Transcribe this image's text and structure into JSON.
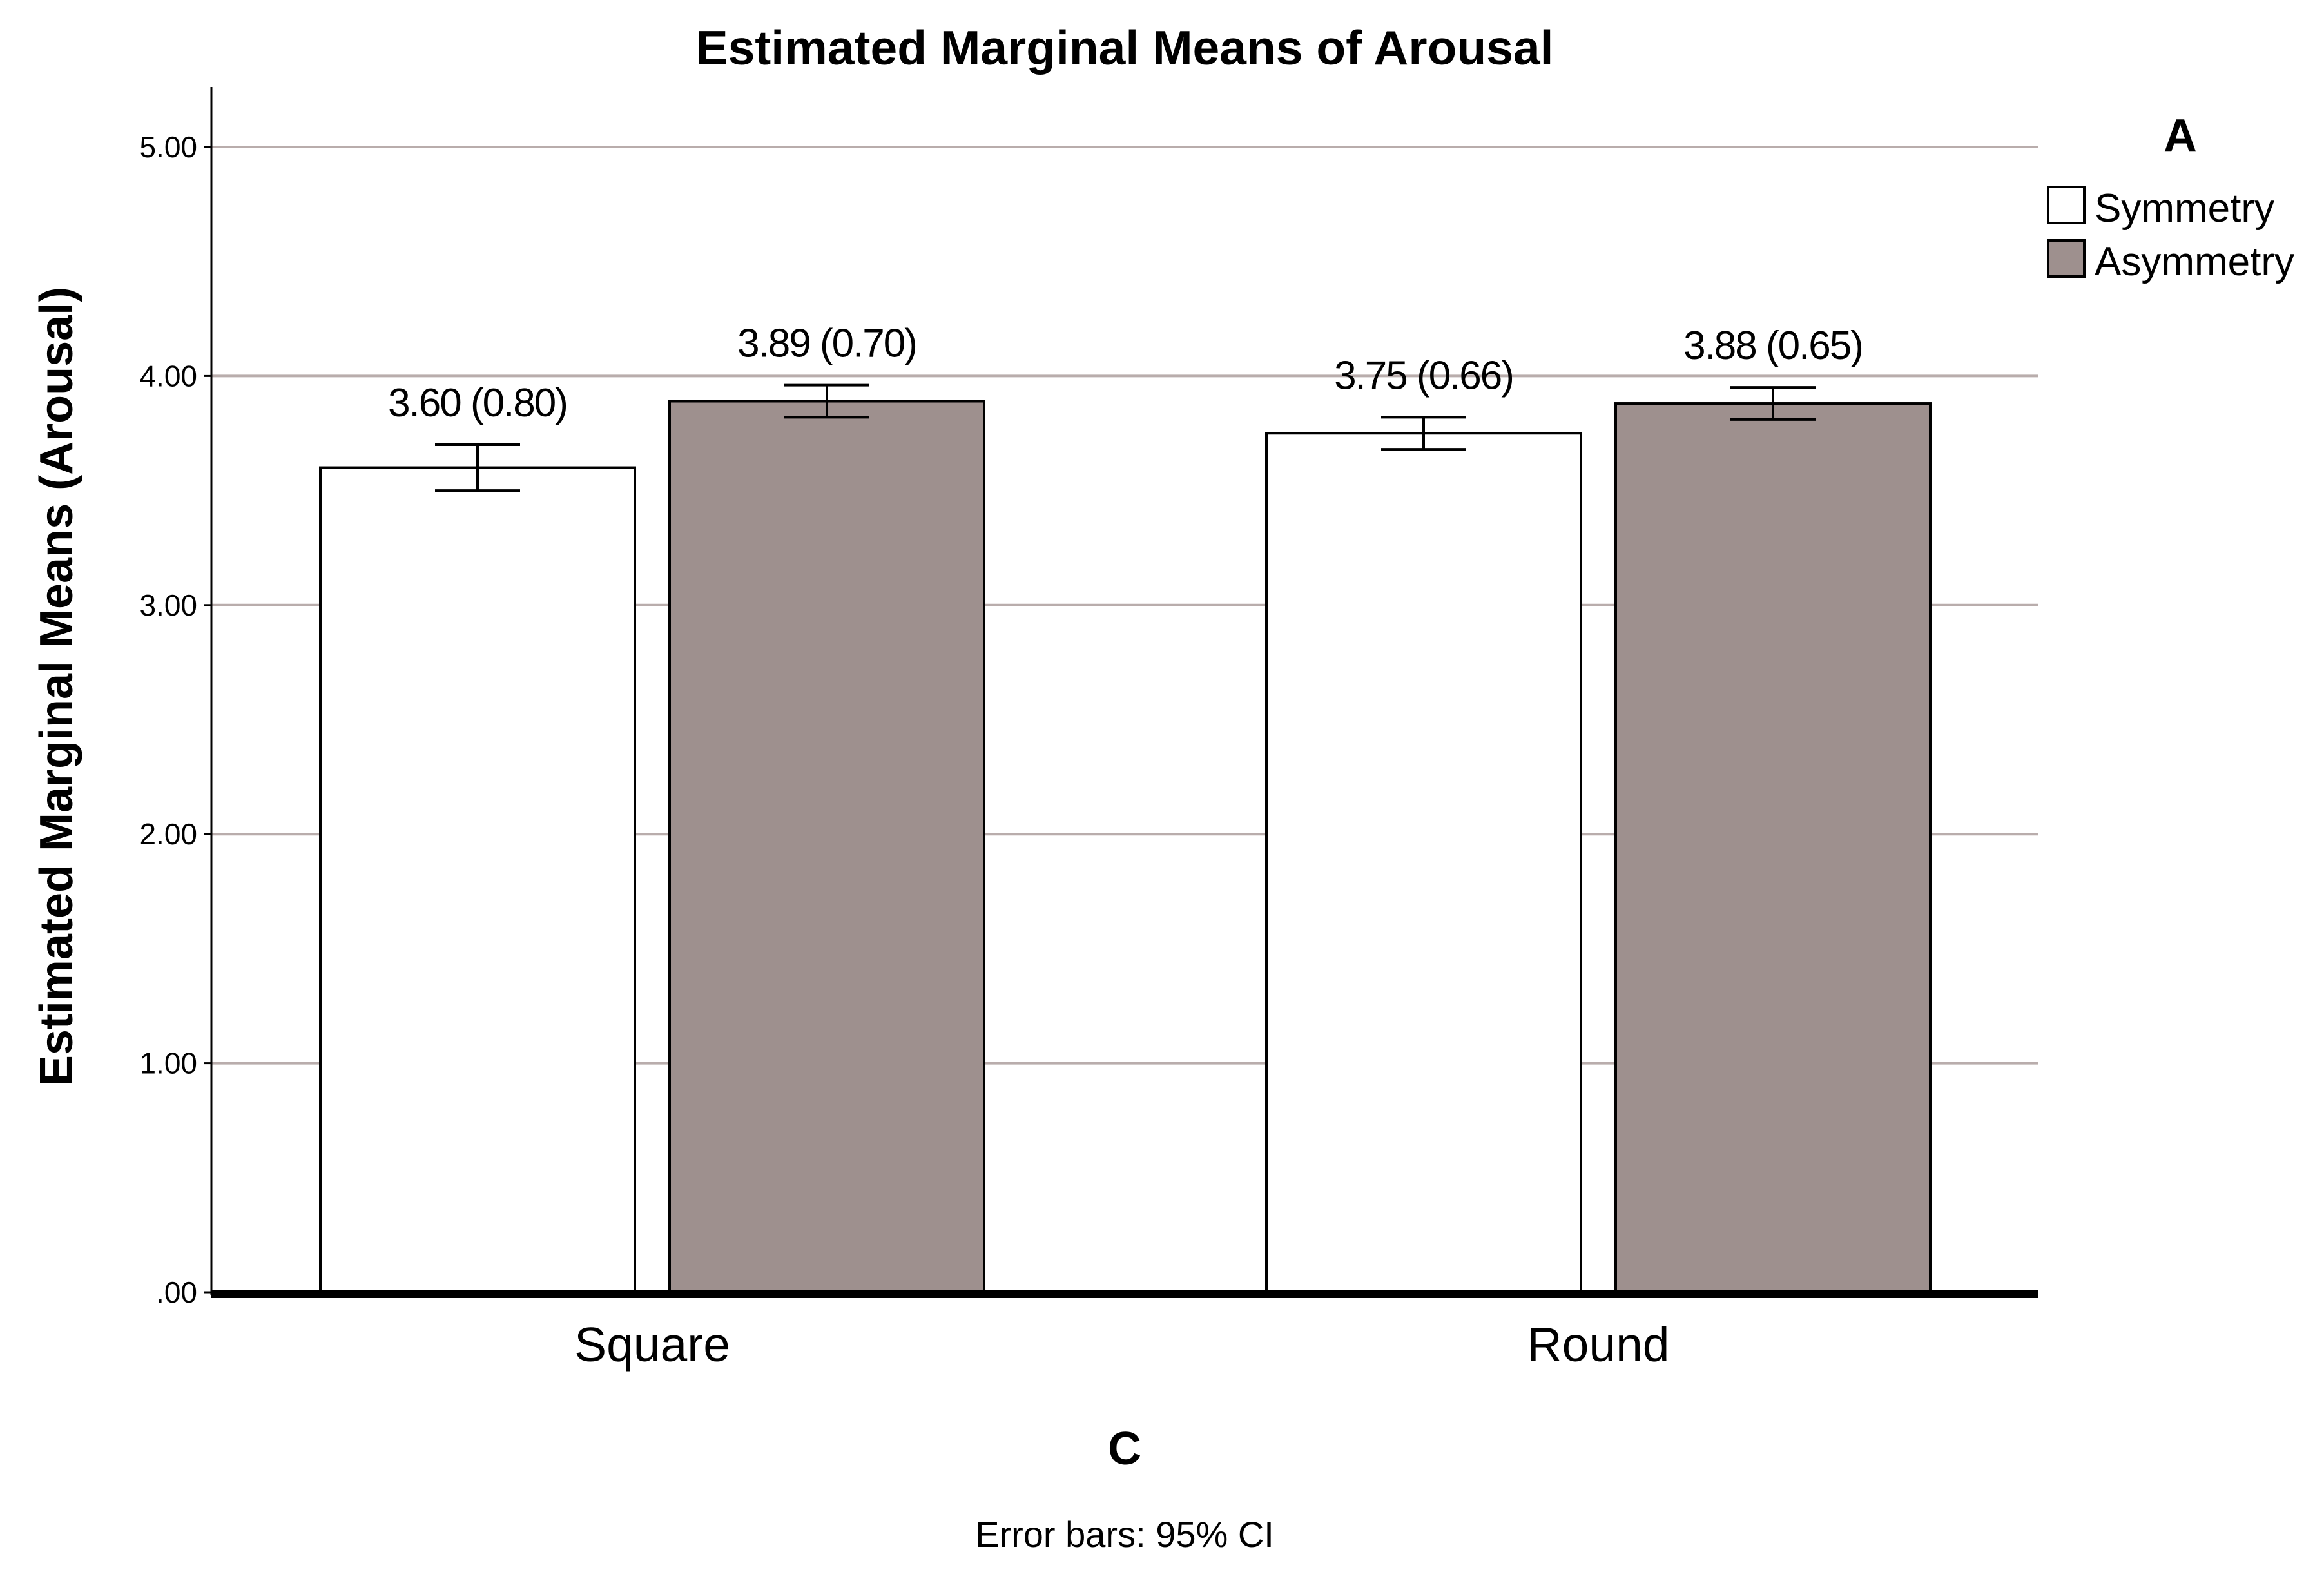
{
  "chart_data": {
    "type": "bar",
    "title": "Estimated Marginal Means of Arousal",
    "xlabel": "C",
    "ylabel": "Estimated Marginal Means (Arousal)",
    "ylim": [
      0,
      5.25
    ],
    "yticks": [
      0,
      1,
      2,
      3,
      4,
      5
    ],
    "ytick_labels": [
      ".00",
      "1.00",
      "2.00",
      "3.00",
      "4.00",
      "5.00"
    ],
    "categories": [
      "Square",
      "Round"
    ],
    "legend_title": "A",
    "legend_position": "top-right",
    "grid": true,
    "series": [
      {
        "name": "Symmetry",
        "color": "#ffffff",
        "values": [
          3.6,
          3.75
        ],
        "ci_low": [
          3.5,
          3.68
        ],
        "ci_high": [
          3.7,
          3.82
        ],
        "labels": [
          "3.60 (0.80)",
          "3.75 (0.66)"
        ]
      },
      {
        "name": "Asymmetry",
        "color": "#9e908e",
        "values": [
          3.89,
          3.88
        ],
        "ci_low": [
          3.82,
          3.81
        ],
        "ci_high": [
          3.96,
          3.95
        ],
        "labels": [
          "3.89 (0.70)",
          "3.88 (0.65)"
        ]
      }
    ],
    "footnote": "Error bars: 95% CI"
  },
  "colors": {
    "gridline": "#b9adac",
    "axis": "#000000",
    "bar_edge": "#000000"
  }
}
